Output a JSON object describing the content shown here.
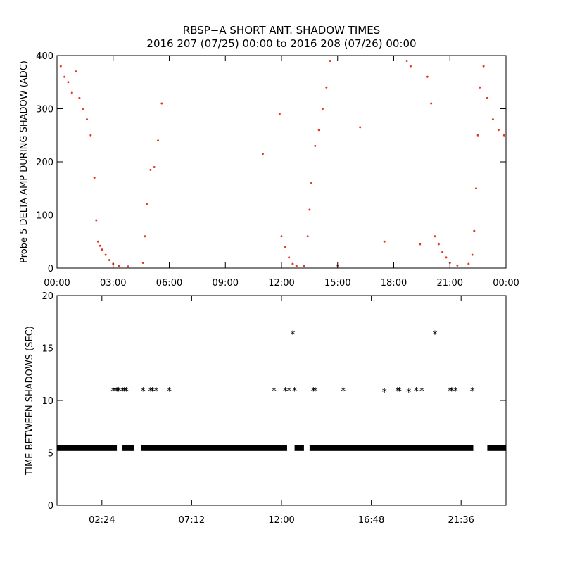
{
  "figure": {
    "title_line1": "RBSP−A SHORT ANT. SHADOW TIMES",
    "title_line2": "2016 207 (07/25) 00:00 to 2016 208 (07/26) 00:00"
  },
  "colors": {
    "top_points": "#e8351f",
    "bottom_points": "#000000",
    "axes": "#000000"
  },
  "chart_data": [
    {
      "type": "scatter",
      "ylabel": "Probe 5 DELTA AMP DURING SHADOW (ADC)",
      "xlabel": "",
      "x_unit": "hours",
      "xlim": [
        0,
        24
      ],
      "ylim": [
        0,
        400
      ],
      "x_ticks": [
        0,
        3,
        6,
        9,
        12,
        15,
        18,
        21,
        24
      ],
      "x_tick_labels": [
        "00:00",
        "03:00",
        "06:00",
        "09:00",
        "12:00",
        "15:00",
        "18:00",
        "21:00",
        "00:00"
      ],
      "y_ticks": [
        0,
        100,
        200,
        300,
        400
      ],
      "y_tick_labels": [
        "0",
        "100",
        "200",
        "300",
        "400"
      ],
      "grid": false,
      "marker": "dot",
      "series": [
        {
          "x": [
            0.2,
            0.4,
            0.6,
            0.8,
            1.0,
            1.2,
            1.4,
            1.6,
            1.8,
            2.0,
            2.1,
            2.2,
            2.3,
            2.4,
            2.6,
            2.8,
            3.0,
            3.3,
            3.8,
            4.6,
            4.7,
            4.8,
            5.0,
            5.2,
            5.4,
            5.6,
            11.0,
            11.9,
            12.0,
            12.2,
            12.4,
            12.6,
            12.8,
            13.2,
            13.4,
            13.5,
            13.6,
            13.8,
            14.0,
            14.2,
            14.4,
            14.6,
            15.0,
            16.2,
            17.5,
            18.7,
            18.9,
            19.4,
            19.8,
            20.0,
            20.2,
            20.4,
            20.6,
            20.8,
            21.0,
            21.4,
            22.0,
            22.2,
            22.3,
            22.4,
            22.5,
            22.6,
            22.8,
            23.0,
            23.3,
            23.6,
            23.9
          ],
          "y": [
            380,
            360,
            350,
            330,
            370,
            320,
            300,
            280,
            250,
            170,
            90,
            50,
            42,
            35,
            25,
            15,
            8,
            4,
            3,
            10,
            60,
            120,
            185,
            190,
            240,
            310,
            215,
            290,
            60,
            40,
            20,
            8,
            4,
            4,
            60,
            110,
            160,
            230,
            260,
            300,
            340,
            390,
            5,
            265,
            50,
            390,
            380,
            45,
            360,
            310,
            60,
            45,
            30,
            20,
            10,
            5,
            8,
            25,
            70,
            150,
            250,
            340,
            380,
            320,
            280,
            260,
            250
          ]
        }
      ]
    },
    {
      "type": "scatter",
      "ylabel": "TIME BETWEEN SHADOWS (SEC)",
      "xlabel": "",
      "x_unit": "hours",
      "xlim": [
        0,
        24
      ],
      "ylim": [
        0,
        20
      ],
      "x_ticks": [
        2.4,
        7.2,
        12.0,
        16.8,
        21.6
      ],
      "x_tick_labels": [
        "02:24",
        "07:12",
        "12:00",
        "16:48",
        "21:36"
      ],
      "y_ticks": [
        0,
        5,
        10,
        15,
        20
      ],
      "y_tick_labels": [
        "0",
        "5",
        "10",
        "15",
        "20"
      ],
      "grid": false,
      "marker": "asterisk",
      "baseline_value": 5.45,
      "baseline_gaps": [
        [
          3.2,
          3.5
        ],
        [
          4.1,
          4.5
        ],
        [
          12.3,
          12.7
        ],
        [
          13.2,
          13.5
        ],
        [
          23.0,
          22.25
        ]
      ],
      "series": [
        {
          "x": [
            3.0,
            3.1,
            3.2,
            3.3,
            3.5,
            3.6,
            3.7,
            4.6,
            5.0,
            5.1,
            5.3,
            6.0,
            11.6,
            12.2,
            12.4,
            12.6,
            12.7,
            13.7,
            13.8,
            15.3,
            17.5,
            18.2,
            18.3,
            18.8,
            19.2,
            19.5,
            20.2,
            21.0,
            21.1,
            21.3,
            22.2
          ],
          "y": [
            10.9,
            10.9,
            10.9,
            10.9,
            10.9,
            10.9,
            10.9,
            10.9,
            10.9,
            10.9,
            10.9,
            10.9,
            10.9,
            10.9,
            10.9,
            16.3,
            10.9,
            10.9,
            10.9,
            10.9,
            10.8,
            10.9,
            10.9,
            10.8,
            10.9,
            10.9,
            16.3,
            10.9,
            10.9,
            10.9,
            10.9
          ]
        }
      ]
    }
  ]
}
